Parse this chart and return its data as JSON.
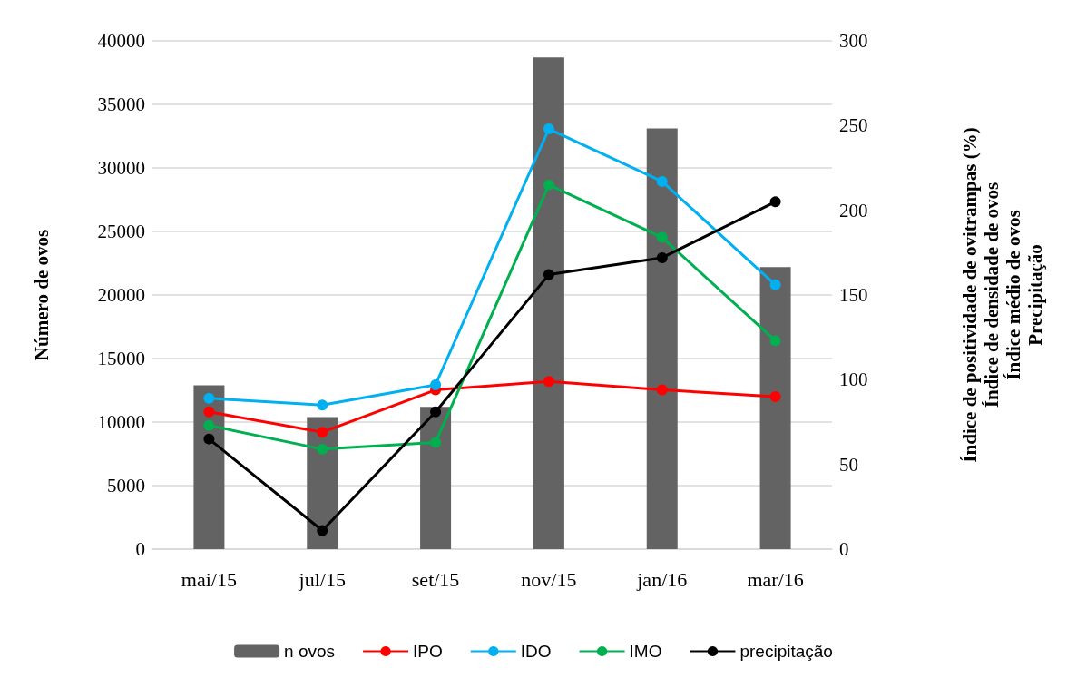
{
  "chart_data": {
    "type": "bar",
    "categories": [
      "mai/15",
      "jul/15",
      "set/15",
      "nov/15",
      "jan/16",
      "mar/16"
    ],
    "ylabel": "Número de ovos",
    "y2label": "Índice de positividade de ovitrampas (%)\nÍndice de densidade de ovos\nÍndice médio de ovos\nPrecipitação",
    "ylim": [
      0,
      40000
    ],
    "yticks": [
      0,
      5000,
      10000,
      15000,
      20000,
      25000,
      30000,
      35000,
      40000
    ],
    "y2lim": [
      0,
      300
    ],
    "y2ticks": [
      0,
      50,
      100,
      150,
      200,
      250,
      300
    ],
    "grid": "y",
    "legend": "bottom",
    "marker": "circle",
    "series": [
      {
        "name": "n ovos",
        "color": "#636363",
        "values": [
          12900,
          10400,
          11200,
          38700,
          33100,
          22200
        ]
      },
      {
        "name": "IPO",
        "type": "line",
        "axis": "y2",
        "color": "#ff0000",
        "values": [
          81,
          69,
          94,
          99,
          94,
          90
        ]
      },
      {
        "name": "IDO",
        "type": "line",
        "axis": "y2",
        "color": "#00b0f0",
        "values": [
          89,
          85,
          97,
          248,
          217,
          156
        ]
      },
      {
        "name": "IMO",
        "type": "line",
        "axis": "y2",
        "color": "#00b050",
        "values": [
          73,
          59,
          63,
          215,
          184,
          123
        ]
      },
      {
        "name": "precipitação",
        "type": "line",
        "axis": "y2",
        "color": "#000000",
        "values": [
          65,
          11,
          81,
          162,
          172,
          205
        ]
      }
    ]
  }
}
